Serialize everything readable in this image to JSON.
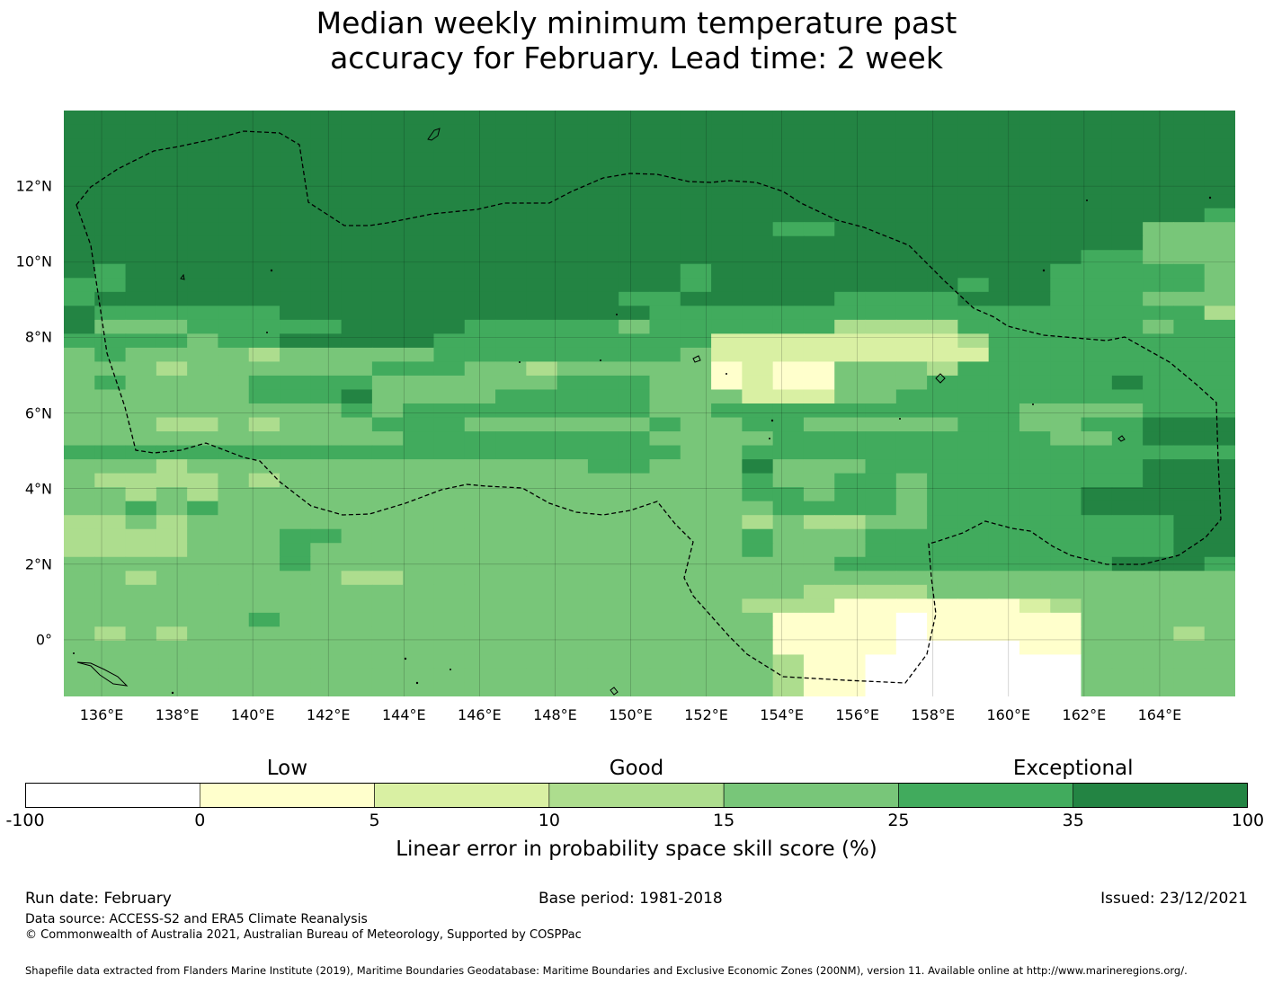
{
  "title": {
    "line1": "Median weekly minimum temperature past",
    "line2": "accuracy for February. Lead time: 2 week"
  },
  "map": {
    "lon_range": [
      135.0,
      166.0
    ],
    "lat_range": [
      -1.5,
      14.0
    ],
    "cell_size_deg": 0.833,
    "x_ticks": [
      "136°E",
      "138°E",
      "140°E",
      "142°E",
      "144°E",
      "146°E",
      "148°E",
      "150°E",
      "152°E",
      "154°E",
      "156°E",
      "158°E",
      "160°E",
      "162°E",
      "164°E"
    ],
    "y_ticks": [
      "12°N",
      "10°N",
      "8°N",
      "6°N",
      "4°N",
      "2°N",
      "0°"
    ],
    "gridlines": "on",
    "region_outline": "dashed EEZ boundary",
    "skill_grid_rows_north_to_south": [
      "66666666666666666666666666666666666666",
      "66666666666666666666666666666666666666",
      "66666666666666666666666666666666666666",
      "66666666666666666666666666666666666666",
      "66666666666666666666666666666666666666",
      "66666666666666666666666666666666666666",
      "66666666666666666666666666666666666666",
      "66666666666666666666666666666666666665",
      "66666666666666666666666556666666666444",
      "66666666666666666666666666666666666444",
      "66666666666666666666666666666666655444",
      "65666666666666666666566666666666555554",
      "55666666666666666666566666666566555554",
      "56666666666666666655666665555666555444",
      "65555556666666666665555555555555555553",
      "64445555566665555545555553333555555455",
      "55554556666655555555522222222355555555",
      "45444434444455555555422222222255555555",
      "44434444445554434444412114443555555555",
      "45444455554444445554412114445555556555",
      "44444455564444555554442224455555555555",
      "44444444454555555554455555555554444555",
      "44433434445554444445445544444554455666",
      "44444444444555555554444555555555445666",
      "55555555555555555555445555555555555555",
      "44434444444444444554446444555555555666",
      "43333434444444444444445445545555555666",
      "44343444444444444444445545545555566666",
      "44545444444444444444444555545555566666",
      "33434444444444444444443433445555555566",
      "33334445544444444444445444555555555566",
      "33334445444444444444445444555555555566",
      "44444445444444444444444445555555556665",
      "44344444433444444444444444444444444444",
      "44444444444444444444444433334444444444",
      "44444444444444444444443331111112344444",
      "44444454444444444444444111101111144444",
      "43434444444444444444444111101111144434",
      "44444444444444444444444111100001144444",
      "44444444444444444444444311000000044444",
      "44444444444444444444444311000000044444",
      "44444444444444444444444311000000044444"
    ]
  },
  "legend": {
    "categories": [
      {
        "label": "Low",
        "at": -100
      },
      {
        "label": "Good",
        "at": 10
      },
      {
        "label": "Exceptional",
        "at": 100
      }
    ],
    "bins": [
      {
        "from": -100,
        "to": 0,
        "color": "#ffffff"
      },
      {
        "from": 0,
        "to": 5,
        "color": "#ffffcc"
      },
      {
        "from": 5,
        "to": 10,
        "color": "#d9f0a3"
      },
      {
        "from": 10,
        "to": 15,
        "color": "#addd8e"
      },
      {
        "from": 15,
        "to": 25,
        "color": "#78c679"
      },
      {
        "from": 25,
        "to": 35,
        "color": "#41ab5d"
      },
      {
        "from": 35,
        "to": 100,
        "color": "#238443"
      }
    ],
    "ticks": [
      "-100",
      "0",
      "5",
      "10",
      "15",
      "25",
      "35",
      "100"
    ],
    "label": "Linear error in probability space skill score (%)"
  },
  "footer": {
    "run_date": "Run date: February",
    "base_period": "Base period: 1981-2018",
    "issued": "Issued: 23/12/2021",
    "data_source": "Data source: ACCESS-S2 and ERA5 Climate Reanalysis",
    "copyright": "© Commonwealth of Australia 2021, Australian Bureau of Meteorology, Supported by COSPPac",
    "shapefile": "Shapefile data extracted from Flanders Marine Institute (2019), Maritime Boundaries Geodatabase: Maritime Boundaries and Exclusive Economic Zones (200NM), version 11. Available online at http://www.marineregions.org/."
  }
}
